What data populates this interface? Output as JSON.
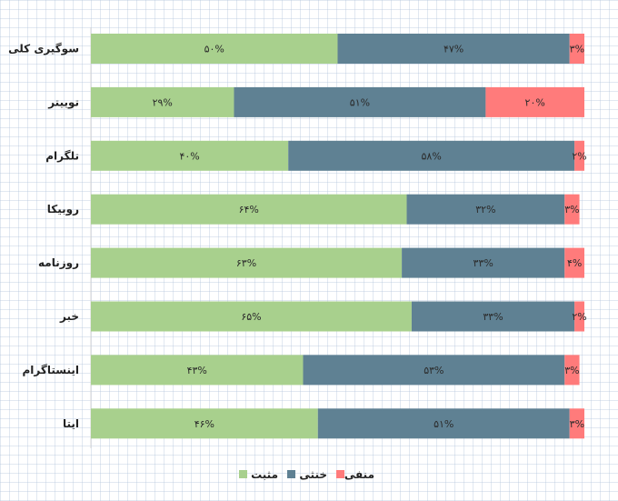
{
  "chart_data": {
    "type": "bar",
    "orientation": "horizontal",
    "stacked": true,
    "percent": true,
    "grid": true,
    "legend_position": "bottom",
    "xlim": [
      0,
      100
    ],
    "categories": [
      "سوگیری کلی",
      "توییتر",
      "تلگرام",
      "روبیکا",
      "روزنامه",
      "خبر",
      "اینستاگرام",
      "ایتا"
    ],
    "series": [
      {
        "name": "مثبت",
        "color": "#a8d08d",
        "values": [
          50,
          29,
          40,
          64,
          63,
          65,
          43,
          46
        ],
        "labels": [
          "۵۰%",
          "۲۹%",
          "۴۰%",
          "۶۴%",
          "۶۳%",
          "۶۵%",
          "۴۳%",
          "۴۶%"
        ]
      },
      {
        "name": "خنثی",
        "color": "#5f8193",
        "values": [
          47,
          51,
          58,
          32,
          33,
          33,
          53,
          51
        ],
        "labels": [
          "۴۷%",
          "۵۱%",
          "۵۸%",
          "۳۲%",
          "۳۳%",
          "۳۳%",
          "۵۳%",
          "۵۱%"
        ]
      },
      {
        "name": "منفی",
        "color": "#ff7b7b",
        "values": [
          3,
          20,
          2,
          3,
          4,
          2,
          3,
          3
        ],
        "labels": [
          "۳%",
          "۲۰%",
          "۲%",
          "۳%",
          "۴%",
          "۲%",
          "۳%",
          "۳%"
        ]
      }
    ]
  }
}
